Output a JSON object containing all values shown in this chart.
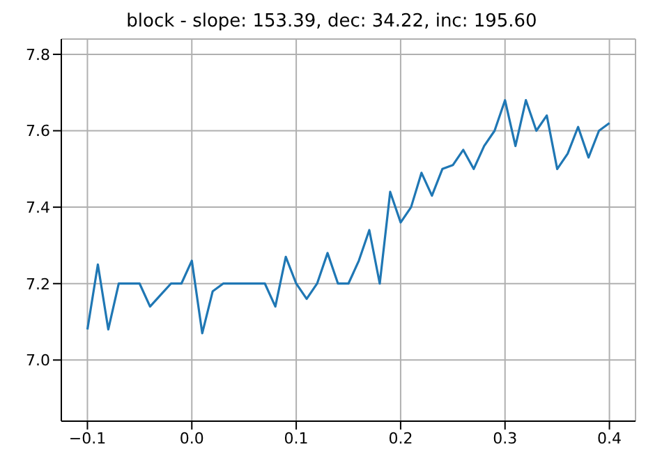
{
  "chart_data": {
    "type": "line",
    "title": "block - slope: 153.39, dec: 34.22, inc: 195.60",
    "x": [
      -0.1,
      -0.09,
      -0.08,
      -0.07,
      -0.06,
      -0.05,
      -0.04,
      -0.03,
      -0.02,
      -0.01,
      0,
      0.01,
      0.02,
      0.03,
      0.04,
      0.05,
      0.06,
      0.07,
      0.08,
      0.09,
      0.1,
      0.11,
      0.12,
      0.13,
      0.14,
      0.15,
      0.16,
      0.17,
      0.18,
      0.19,
      0.2,
      0.21,
      0.22,
      0.23,
      0.24,
      0.25,
      0.26,
      0.27,
      0.28,
      0.29,
      0.3,
      0.31,
      0.32,
      0.33,
      0.34,
      0.35,
      0.36,
      0.37,
      0.38,
      0.39,
      0.4
    ],
    "series": [
      {
        "color": "#1f77b4",
        "values": [
          7.08,
          7.25,
          7.08,
          7.2,
          7.2,
          7.2,
          7.14,
          7.17,
          7.2,
          7.2,
          7.26,
          7.07,
          7.18,
          7.2,
          7.2,
          7.2,
          7.2,
          7.2,
          7.14,
          7.27,
          7.2,
          7.16,
          7.2,
          7.28,
          7.2,
          7.2,
          7.26,
          7.34,
          7.2,
          7.44,
          7.36,
          7.4,
          7.49,
          7.43,
          7.5,
          7.51,
          7.55,
          7.5,
          7.56,
          7.6,
          7.68,
          7.56,
          7.68,
          7.6,
          7.64,
          7.5,
          7.54,
          7.61,
          7.53,
          7.6,
          7.62
        ]
      }
    ],
    "xlim": [
      -0.125,
      0.425
    ],
    "xticks": [
      {
        "value": -0.1,
        "label": "−0.1"
      },
      {
        "value": 0,
        "label": "0.0"
      },
      {
        "value": 0.1,
        "label": "0.1"
      },
      {
        "value": 0.2,
        "label": "0.2"
      },
      {
        "value": 0.3,
        "label": "0.3"
      },
      {
        "value": 0.4,
        "label": "0.4"
      }
    ],
    "ylim": [
      6.84,
      7.84
    ],
    "yticks": [
      {
        "value": 7.0,
        "label": "7.0"
      },
      {
        "value": 7.2,
        "label": "7.2"
      },
      {
        "value": 7.4,
        "label": "7.4"
      },
      {
        "value": 7.6,
        "label": "7.6"
      },
      {
        "value": 7.8,
        "label": "7.8"
      }
    ],
    "grid": true,
    "legend": false,
    "marker": "none",
    "line_style": "solid"
  }
}
